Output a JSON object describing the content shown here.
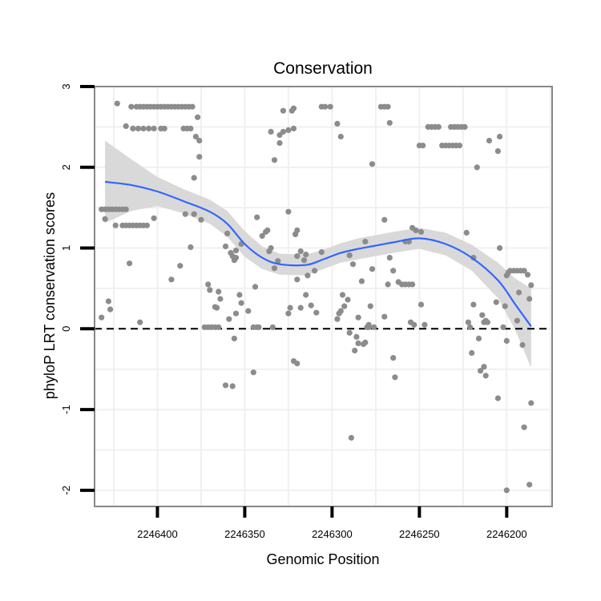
{
  "chart_data": {
    "type": "scatter",
    "title": "Conservation",
    "xlabel": "Genomic Position",
    "ylabel": "phyloP LRT conservation scores",
    "x_axis_reversed": true,
    "xlim": [
      2246436,
      2246174
    ],
    "ylim": [
      -2.2,
      3.0
    ],
    "xticks": [
      2246400,
      2246350,
      2246300,
      2246250,
      2246200
    ],
    "xtick_labels": [
      "2246400",
      "2246350",
      "2246300",
      "2246250",
      "2246200"
    ],
    "yticks": [
      -2,
      -1,
      0,
      1,
      2,
      3
    ],
    "ytick_labels": [
      "-2",
      "-1",
      "0",
      "1",
      "2",
      "3"
    ],
    "reference_line": {
      "y": 0,
      "style": "dashed"
    },
    "colors": {
      "points": "#8c8c8c",
      "smooth": "#3366ff",
      "band": "#d9d9d9",
      "grid": "#f0f0f0",
      "frame": "#888888"
    },
    "points": [
      [
        2246423,
        2.79
      ],
      [
        2246415,
        2.75
      ],
      [
        2246412,
        2.75
      ],
      [
        2246410,
        2.75
      ],
      [
        2246408,
        2.75
      ],
      [
        2246406,
        2.75
      ],
      [
        2246404,
        2.75
      ],
      [
        2246402,
        2.75
      ],
      [
        2246400,
        2.75
      ],
      [
        2246398,
        2.75
      ],
      [
        2246396,
        2.75
      ],
      [
        2246394,
        2.75
      ],
      [
        2246392,
        2.75
      ],
      [
        2246390,
        2.75
      ],
      [
        2246388,
        2.75
      ],
      [
        2246386,
        2.75
      ],
      [
        2246384,
        2.75
      ],
      [
        2246382,
        2.75
      ],
      [
        2246380,
        2.75
      ],
      [
        2246418,
        2.51
      ],
      [
        2246414,
        2.48
      ],
      [
        2246411,
        2.48
      ],
      [
        2246408,
        2.48
      ],
      [
        2246405,
        2.48
      ],
      [
        2246402,
        2.48
      ],
      [
        2246398,
        2.48
      ],
      [
        2246396,
        2.48
      ],
      [
        2246385,
        2.48
      ],
      [
        2246383,
        2.48
      ],
      [
        2246381,
        2.48
      ],
      [
        2246377,
        2.62
      ],
      [
        2246378,
        2.38
      ],
      [
        2246376,
        2.33
      ],
      [
        2246376,
        2.13
      ],
      [
        2246384,
        1.42
      ],
      [
        2246379,
        1.87
      ],
      [
        2246381,
        1.01
      ],
      [
        2246387,
        0.78
      ],
      [
        2246420,
        1.28
      ],
      [
        2246418,
        1.28
      ],
      [
        2246416,
        1.28
      ],
      [
        2246414,
        1.28
      ],
      [
        2246412,
        1.28
      ],
      [
        2246410,
        1.28
      ],
      [
        2246408,
        1.28
      ],
      [
        2246406,
        1.28
      ],
      [
        2246424,
        1.28
      ],
      [
        2246430,
        1.36
      ],
      [
        2246432,
        1.48
      ],
      [
        2246430,
        1.48
      ],
      [
        2246428,
        1.48
      ],
      [
        2246426,
        1.48
      ],
      [
        2246424,
        1.48
      ],
      [
        2246422,
        1.48
      ],
      [
        2246420,
        1.48
      ],
      [
        2246418,
        1.48
      ],
      [
        2246402,
        1.37
      ],
      [
        2246392,
        0.61
      ],
      [
        2246416,
        0.81
      ],
      [
        2246428,
        0.34
      ],
      [
        2246427,
        0.24
      ],
      [
        2246432,
        0.14
      ],
      [
        2246410,
        0.08
      ],
      [
        2246379,
        1.42
      ],
      [
        2246375,
        1.35
      ],
      [
        2246371,
        0.55
      ],
      [
        2246373,
        0.02
      ],
      [
        2246371,
        0.02
      ],
      [
        2246369,
        0.02
      ],
      [
        2246367,
        0.02
      ],
      [
        2246365,
        0.02
      ],
      [
        2246370,
        0.48
      ],
      [
        2246367,
        0.27
      ],
      [
        2246366,
        0.26
      ],
      [
        2246364,
        0.37
      ],
      [
        2246365,
        0.46
      ],
      [
        2246360,
        1.18
      ],
      [
        2246361,
        1.02
      ],
      [
        2246358,
        0.94
      ],
      [
        2246357,
        0.9
      ],
      [
        2246356,
        0.85
      ],
      [
        2246355,
        0.88
      ],
      [
        2246361,
        -0.7
      ],
      [
        2246357,
        -0.71
      ],
      [
        2246355,
        0.19
      ],
      [
        2246356,
        -0.12
      ],
      [
        2246359,
        0.12
      ],
      [
        2246352,
        0.32
      ],
      [
        2246353,
        0.42
      ],
      [
        2246348,
        0.22
      ],
      [
        2246345,
        0.02
      ],
      [
        2246343,
        0.02
      ],
      [
        2246342,
        0.02
      ],
      [
        2246344,
        0.52
      ],
      [
        2246345,
        -0.54
      ],
      [
        2246352,
        1.05
      ],
      [
        2246355,
        0.97
      ],
      [
        2246343,
        1.38
      ],
      [
        2246340,
        1.15
      ],
      [
        2246338,
        1.2
      ],
      [
        2246337,
        1.22
      ],
      [
        2246336,
        0.96
      ],
      [
        2246335,
        1.0
      ],
      [
        2246333,
        0.75
      ],
      [
        2246331,
        0.84
      ],
      [
        2246334,
        0.02
      ],
      [
        2246333,
        2.09
      ],
      [
        2246335,
        2.44
      ],
      [
        2246330,
        2.4
      ],
      [
        2246328,
        2.44
      ],
      [
        2246325,
        2.46
      ],
      [
        2246322,
        2.48
      ],
      [
        2246330,
        2.3
      ],
      [
        2246328,
        2.7
      ],
      [
        2246323,
        2.7
      ],
      [
        2246322,
        2.73
      ],
      [
        2246318,
        0.96
      ],
      [
        2246320,
        0.9
      ],
      [
        2246325,
        1.45
      ],
      [
        2246321,
        1.17
      ],
      [
        2246320,
        1.22
      ],
      [
        2246315,
        0.92
      ],
      [
        2246316,
        0.85
      ],
      [
        2246320,
        0.61
      ],
      [
        2246324,
        0.26
      ],
      [
        2246325,
        0.19
      ],
      [
        2246322,
        -0.4
      ],
      [
        2246320,
        -0.43
      ],
      [
        2246318,
        0.26
      ],
      [
        2246315,
        0.42
      ],
      [
        2246312,
        0.29
      ],
      [
        2246314,
        0.66
      ],
      [
        2246309,
        0.2
      ],
      [
        2246306,
        0.95
      ],
      [
        2246310,
        0.72
      ],
      [
        2246306,
        2.75
      ],
      [
        2246304,
        2.75
      ],
      [
        2246301,
        2.75
      ],
      [
        2246297,
        2.54
      ],
      [
        2246295,
        2.38
      ],
      [
        2246297,
        0.12
      ],
      [
        2246296,
        0.19
      ],
      [
        2246295,
        0.22
      ],
      [
        2246294,
        0.42
      ],
      [
        2246293,
        0.28
      ],
      [
        2246291,
        0.36
      ],
      [
        2246290,
        -0.05
      ],
      [
        2246290,
        0.91
      ],
      [
        2246288,
        0.8
      ],
      [
        2246287,
        -0.27
      ],
      [
        2246285,
        -0.18
      ],
      [
        2246286,
        -0.1
      ],
      [
        2246285,
        0.14
      ],
      [
        2246282,
        -0.19
      ],
      [
        2246281,
        -0.17
      ],
      [
        2246283,
        0.59
      ],
      [
        2246280,
        0.02
      ],
      [
        2246279,
        0.05
      ],
      [
        2246278,
        0.28
      ],
      [
        2246276,
        0.02
      ],
      [
        2246277,
        0.74
      ],
      [
        2246281,
        1.08
      ],
      [
        2246277,
        2.04
      ],
      [
        2246272,
        2.75
      ],
      [
        2246270,
        2.75
      ],
      [
        2246268,
        2.75
      ],
      [
        2246267,
        2.55
      ],
      [
        2246270,
        1.35
      ],
      [
        2246267,
        0.88
      ],
      [
        2246265,
        0.72
      ],
      [
        2246270,
        0.15
      ],
      [
        2246262,
        0.58
      ],
      [
        2246260,
        0.55
      ],
      [
        2246258,
        0.55
      ],
      [
        2246256,
        0.55
      ],
      [
        2246254,
        0.55
      ],
      [
        2246268,
        0.55
      ],
      [
        2246265,
        -0.36
      ],
      [
        2246264,
        -0.6
      ],
      [
        2246289,
        -1.35
      ],
      [
        2246279,
        0.02
      ],
      [
        2246258,
        1.08
      ],
      [
        2246256,
        1.08
      ],
      [
        2246254,
        1.25
      ],
      [
        2246252,
        1.22
      ],
      [
        2246249,
        1.2
      ],
      [
        2246255,
        0.08
      ],
      [
        2246253,
        0.05
      ],
      [
        2246249,
        0.3
      ],
      [
        2246247,
        0.05
      ],
      [
        2246250,
        2.27
      ],
      [
        2246248,
        2.27
      ],
      [
        2246245,
        2.5
      ],
      [
        2246243,
        2.5
      ],
      [
        2246241,
        2.5
      ],
      [
        2246239,
        2.5
      ],
      [
        2246237,
        2.27
      ],
      [
        2246235,
        2.27
      ],
      [
        2246233,
        2.27
      ],
      [
        2246231,
        2.27
      ],
      [
        2246229,
        2.27
      ],
      [
        2246227,
        2.27
      ],
      [
        2246232,
        2.5
      ],
      [
        2246230,
        2.5
      ],
      [
        2246228,
        2.5
      ],
      [
        2246226,
        2.5
      ],
      [
        2246224,
        2.5
      ],
      [
        2246223,
        1.19
      ],
      [
        2246219,
        0.88
      ],
      [
        2246217,
        2.0
      ],
      [
        2246222,
        0.08
      ],
      [
        2246221,
        0.02
      ],
      [
        2246219,
        0.3
      ],
      [
        2246220,
        -0.3
      ],
      [
        2246215,
        -0.52
      ],
      [
        2246213,
        -0.47
      ],
      [
        2246212,
        -0.58
      ],
      [
        2246214,
        0.17
      ],
      [
        2246213,
        0.08
      ],
      [
        2246211,
        0.08
      ],
      [
        2246212,
        0.1
      ],
      [
        2246216,
        -0.12
      ],
      [
        2246210,
        2.33
      ],
      [
        2246205,
        2.2
      ],
      [
        2246204,
        2.38
      ],
      [
        2246205,
        -0.86
      ],
      [
        2246204,
        1.0
      ],
      [
        2246201,
        0.28
      ],
      [
        2246200,
        0.66
      ],
      [
        2246199,
        0.7
      ],
      [
        2246198,
        0.72
      ],
      [
        2246196,
        0.72
      ],
      [
        2246194,
        0.72
      ],
      [
        2246192,
        0.72
      ],
      [
        2246190,
        0.72
      ],
      [
        2246188,
        0.67
      ],
      [
        2246202,
        0.02
      ],
      [
        2246200,
        -0.15
      ],
      [
        2246193,
        0.45
      ],
      [
        2246191,
        -0.2
      ],
      [
        2246187,
        0.37
      ],
      [
        2246186,
        0.54
      ],
      [
        2246194,
        0.1
      ],
      [
        2246190,
        -1.22
      ],
      [
        2246200,
        -2.0
      ],
      [
        2246187,
        -1.93
      ],
      [
        2246186,
        -0.92
      ],
      [
        2246206,
        0.33
      ]
    ],
    "smooth": [
      [
        2246430,
        1.82
      ],
      [
        2246415,
        1.78
      ],
      [
        2246400,
        1.7
      ],
      [
        2246385,
        1.58
      ],
      [
        2246370,
        1.45
      ],
      [
        2246360,
        1.3
      ],
      [
        2246350,
        1.05
      ],
      [
        2246340,
        0.88
      ],
      [
        2246330,
        0.8
      ],
      [
        2246315,
        0.79
      ],
      [
        2246305,
        0.86
      ],
      [
        2246295,
        0.94
      ],
      [
        2246285,
        0.99
      ],
      [
        2246275,
        1.03
      ],
      [
        2246265,
        1.07
      ],
      [
        2246250,
        1.12
      ],
      [
        2246235,
        1.05
      ],
      [
        2246220,
        0.88
      ],
      [
        2246205,
        0.6
      ],
      [
        2246195,
        0.3
      ],
      [
        2246186,
        0.03
      ]
    ],
    "band_upper": [
      2.33,
      2.1,
      1.88,
      1.73,
      1.6,
      1.46,
      1.21,
      1.02,
      0.93,
      0.92,
      0.98,
      1.06,
      1.12,
      1.16,
      1.2,
      1.25,
      1.19,
      1.04,
      0.82,
      0.62,
      0.5
    ],
    "band_lower": [
      1.31,
      1.46,
      1.52,
      1.43,
      1.3,
      1.14,
      0.89,
      0.74,
      0.67,
      0.66,
      0.74,
      0.82,
      0.86,
      0.9,
      0.94,
      0.99,
      0.91,
      0.72,
      0.38,
      -0.02,
      -0.48
    ]
  }
}
